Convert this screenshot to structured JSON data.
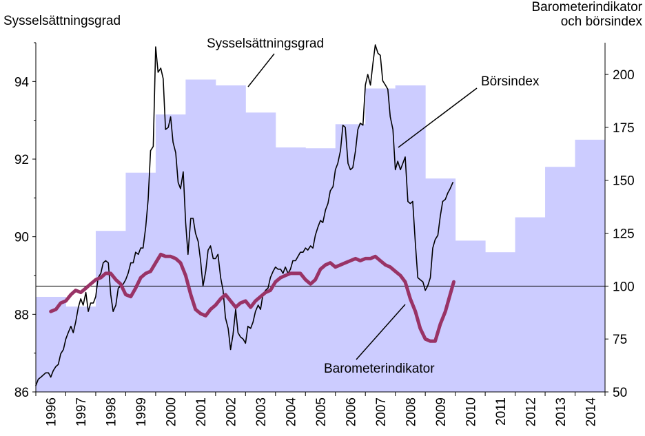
{
  "chart_data": {
    "type": "bar+line",
    "left_axis_label": "Sysselsättningsgrad",
    "right_axis_label_line1": "Barometerindikator",
    "right_axis_label_line2": "och börsindex",
    "left_ylim": [
      86,
      95
    ],
    "left_ticks": [
      "86",
      "88",
      "90",
      "92",
      "94"
    ],
    "right_ylim": [
      50,
      215
    ],
    "right_ticks": [
      "50",
      "75",
      "100",
      "125",
      "150",
      "175",
      "200"
    ],
    "reference_line_right": 100,
    "categories": [
      "1996",
      "1997",
      "1998",
      "1999",
      "2000",
      "2001",
      "2002",
      "2003",
      "2004",
      "2005",
      "2006",
      "2007",
      "2008",
      "2009",
      "2010",
      "2011",
      "2012",
      "2013",
      "2014"
    ],
    "bars": {
      "name": "Sysselsättningsgrad",
      "values": [
        88.45,
        88.2,
        90.15,
        91.65,
        93.15,
        94.05,
        93.9,
        93.2,
        92.3,
        92.28,
        92.9,
        93.82,
        93.9,
        91.5,
        89.9,
        89.6,
        90.5,
        91.8,
        92.5
      ]
    },
    "series": [
      {
        "name": "Börsindex",
        "axis": "right",
        "values": [
          [
            1996.0,
            53
          ],
          [
            1996.08,
            56
          ],
          [
            1996.17,
            57
          ],
          [
            1996.25,
            58
          ],
          [
            1996.33,
            59
          ],
          [
            1996.42,
            59
          ],
          [
            1996.5,
            57
          ],
          [
            1996.58,
            60
          ],
          [
            1996.67,
            62
          ],
          [
            1996.75,
            63
          ],
          [
            1996.83,
            68
          ],
          [
            1996.92,
            70
          ],
          [
            1997.0,
            75
          ],
          [
            1997.08,
            78
          ],
          [
            1997.17,
            81
          ],
          [
            1997.25,
            78
          ],
          [
            1997.33,
            83
          ],
          [
            1997.42,
            90
          ],
          [
            1997.5,
            94
          ],
          [
            1997.58,
            91
          ],
          [
            1997.67,
            97
          ],
          [
            1997.75,
            88
          ],
          [
            1997.83,
            92
          ],
          [
            1997.92,
            92
          ],
          [
            1998.0,
            95
          ],
          [
            1998.08,
            104
          ],
          [
            1998.17,
            106
          ],
          [
            1998.25,
            111
          ],
          [
            1998.33,
            112
          ],
          [
            1998.42,
            111
          ],
          [
            1998.5,
            96
          ],
          [
            1998.58,
            88
          ],
          [
            1998.67,
            91
          ],
          [
            1998.75,
            99
          ],
          [
            1998.83,
            100
          ],
          [
            1998.92,
            101
          ],
          [
            1999.0,
            103
          ],
          [
            1999.08,
            106
          ],
          [
            1999.17,
            111
          ],
          [
            1999.25,
            111
          ],
          [
            1999.33,
            116
          ],
          [
            1999.42,
            115
          ],
          [
            1999.5,
            118
          ],
          [
            1999.58,
            118
          ],
          [
            1999.67,
            128
          ],
          [
            1999.75,
            141
          ],
          [
            1999.83,
            164
          ],
          [
            1999.92,
            166
          ],
          [
            2000.0,
            213
          ],
          [
            2000.08,
            201
          ],
          [
            2000.17,
            203
          ],
          [
            2000.25,
            198
          ],
          [
            2000.33,
            174
          ],
          [
            2000.42,
            175
          ],
          [
            2000.5,
            180
          ],
          [
            2000.58,
            168
          ],
          [
            2000.67,
            163
          ],
          [
            2000.75,
            149
          ],
          [
            2000.83,
            146
          ],
          [
            2000.92,
            154
          ],
          [
            2001.0,
            130
          ],
          [
            2001.08,
            115
          ],
          [
            2001.17,
            132
          ],
          [
            2001.25,
            132
          ],
          [
            2001.33,
            125
          ],
          [
            2001.42,
            121
          ],
          [
            2001.5,
            112
          ],
          [
            2001.58,
            100
          ],
          [
            2001.67,
            107
          ],
          [
            2001.75,
            117
          ],
          [
            2001.83,
            119
          ],
          [
            2001.92,
            113
          ],
          [
            2002.0,
            113
          ],
          [
            2002.08,
            115
          ],
          [
            2002.17,
            104
          ],
          [
            2002.25,
            98
          ],
          [
            2002.33,
            85
          ],
          [
            2002.42,
            80
          ],
          [
            2002.5,
            70
          ],
          [
            2002.58,
            77
          ],
          [
            2002.67,
            89
          ],
          [
            2002.75,
            78
          ],
          [
            2002.83,
            76
          ],
          [
            2002.92,
            75
          ],
          [
            2003.0,
            73
          ],
          [
            2003.08,
            81
          ],
          [
            2003.17,
            80
          ],
          [
            2003.25,
            83
          ],
          [
            2003.33,
            88
          ],
          [
            2003.42,
            91
          ],
          [
            2003.5,
            89
          ],
          [
            2003.58,
            96
          ],
          [
            2003.67,
            98
          ],
          [
            2003.75,
            99
          ],
          [
            2003.83,
            104
          ],
          [
            2003.92,
            107
          ],
          [
            2004.0,
            109
          ],
          [
            2004.08,
            108
          ],
          [
            2004.17,
            108
          ],
          [
            2004.25,
            106
          ],
          [
            2004.33,
            109
          ],
          [
            2004.42,
            106
          ],
          [
            2004.5,
            108
          ],
          [
            2004.58,
            112
          ],
          [
            2004.67,
            112
          ],
          [
            2004.75,
            114
          ],
          [
            2004.83,
            116
          ],
          [
            2004.92,
            116
          ],
          [
            2005.0,
            118
          ],
          [
            2005.08,
            117
          ],
          [
            2005.17,
            119
          ],
          [
            2005.25,
            118
          ],
          [
            2005.33,
            124
          ],
          [
            2005.42,
            128
          ],
          [
            2005.5,
            131
          ],
          [
            2005.58,
            130
          ],
          [
            2005.67,
            136
          ],
          [
            2005.75,
            139
          ],
          [
            2005.83,
            145
          ],
          [
            2005.92,
            147
          ],
          [
            2006.0,
            155
          ],
          [
            2006.08,
            158
          ],
          [
            2006.17,
            164
          ],
          [
            2006.25,
            176
          ],
          [
            2006.33,
            175
          ],
          [
            2006.42,
            158
          ],
          [
            2006.5,
            155
          ],
          [
            2006.58,
            156
          ],
          [
            2006.67,
            164
          ],
          [
            2006.75,
            174
          ],
          [
            2006.83,
            177
          ],
          [
            2006.92,
            176
          ],
          [
            2007.0,
            195
          ],
          [
            2007.08,
            200
          ],
          [
            2007.17,
            195
          ],
          [
            2007.25,
            205
          ],
          [
            2007.33,
            214
          ],
          [
            2007.42,
            210
          ],
          [
            2007.5,
            209
          ],
          [
            2007.58,
            197
          ],
          [
            2007.67,
            195
          ],
          [
            2007.75,
            193
          ],
          [
            2007.83,
            180
          ],
          [
            2007.92,
            174
          ],
          [
            2008.0,
            155
          ],
          [
            2008.08,
            159
          ],
          [
            2008.17,
            155
          ],
          [
            2008.25,
            158
          ],
          [
            2008.33,
            161
          ],
          [
            2008.42,
            140
          ],
          [
            2008.5,
            139
          ],
          [
            2008.58,
            140
          ],
          [
            2008.67,
            120
          ],
          [
            2008.75,
            104
          ],
          [
            2008.83,
            103
          ],
          [
            2008.92,
            102
          ],
          [
            2009.0,
            98
          ],
          [
            2009.08,
            100
          ],
          [
            2009.17,
            104
          ],
          [
            2009.25,
            118
          ],
          [
            2009.33,
            122
          ],
          [
            2009.42,
            124
          ],
          [
            2009.5,
            133
          ],
          [
            2009.58,
            140
          ],
          [
            2009.67,
            141
          ],
          [
            2009.75,
            144
          ],
          [
            2009.83,
            146
          ],
          [
            2009.92,
            149
          ]
        ]
      },
      {
        "name": "Barometerindikator",
        "axis": "right",
        "values": [
          [
            1996.5,
            88
          ],
          [
            1996.67,
            89
          ],
          [
            1996.83,
            92
          ],
          [
            1997.0,
            93
          ],
          [
            1997.17,
            96
          ],
          [
            1997.33,
            98
          ],
          [
            1997.5,
            97
          ],
          [
            1997.67,
            99
          ],
          [
            1997.83,
            101
          ],
          [
            1998.0,
            103
          ],
          [
            1998.17,
            104
          ],
          [
            1998.33,
            106
          ],
          [
            1998.5,
            106
          ],
          [
            1998.67,
            103
          ],
          [
            1998.83,
            101
          ],
          [
            1999.0,
            96
          ],
          [
            1999.17,
            95
          ],
          [
            1999.33,
            99
          ],
          [
            1999.5,
            104
          ],
          [
            1999.67,
            106
          ],
          [
            1999.83,
            107
          ],
          [
            2000.0,
            111
          ],
          [
            2000.17,
            115
          ],
          [
            2000.33,
            114
          ],
          [
            2000.5,
            114
          ],
          [
            2000.67,
            113
          ],
          [
            2000.83,
            111
          ],
          [
            2001.0,
            105
          ],
          [
            2001.17,
            96
          ],
          [
            2001.33,
            89
          ],
          [
            2001.5,
            87
          ],
          [
            2001.67,
            86
          ],
          [
            2001.83,
            89
          ],
          [
            2002.0,
            91
          ],
          [
            2002.17,
            94
          ],
          [
            2002.33,
            96
          ],
          [
            2002.5,
            93
          ],
          [
            2002.67,
            90
          ],
          [
            2002.83,
            92
          ],
          [
            2003.0,
            93
          ],
          [
            2003.17,
            90
          ],
          [
            2003.33,
            93
          ],
          [
            2003.5,
            95
          ],
          [
            2003.67,
            97
          ],
          [
            2003.83,
            98
          ],
          [
            2004.0,
            102
          ],
          [
            2004.17,
            104
          ],
          [
            2004.33,
            105
          ],
          [
            2004.5,
            106
          ],
          [
            2004.67,
            106
          ],
          [
            2004.83,
            106
          ],
          [
            2005.0,
            103
          ],
          [
            2005.17,
            101
          ],
          [
            2005.33,
            103
          ],
          [
            2005.5,
            108
          ],
          [
            2005.67,
            110
          ],
          [
            2005.83,
            111
          ],
          [
            2006.0,
            109
          ],
          [
            2006.17,
            110
          ],
          [
            2006.33,
            111
          ],
          [
            2006.5,
            112
          ],
          [
            2006.67,
            113
          ],
          [
            2006.83,
            112
          ],
          [
            2007.0,
            113
          ],
          [
            2007.17,
            113
          ],
          [
            2007.33,
            114
          ],
          [
            2007.5,
            112
          ],
          [
            2007.67,
            110
          ],
          [
            2007.83,
            109
          ],
          [
            2008.0,
            107
          ],
          [
            2008.17,
            105
          ],
          [
            2008.33,
            102
          ],
          [
            2008.5,
            94
          ],
          [
            2008.67,
            88
          ],
          [
            2008.83,
            80
          ],
          [
            2009.0,
            75
          ],
          [
            2009.17,
            74
          ],
          [
            2009.33,
            74
          ],
          [
            2009.5,
            82
          ],
          [
            2009.67,
            88
          ],
          [
            2009.83,
            96
          ],
          [
            2009.95,
            102
          ]
        ]
      }
    ],
    "annotations": [
      "Sysselsättningsgrad",
      "Börsindex",
      "Barometerindikator"
    ],
    "grid": false,
    "colors": {
      "bars": "#ccccff",
      "borsindex": "#000000",
      "barometer": "#993366",
      "axis": "#000000"
    }
  }
}
